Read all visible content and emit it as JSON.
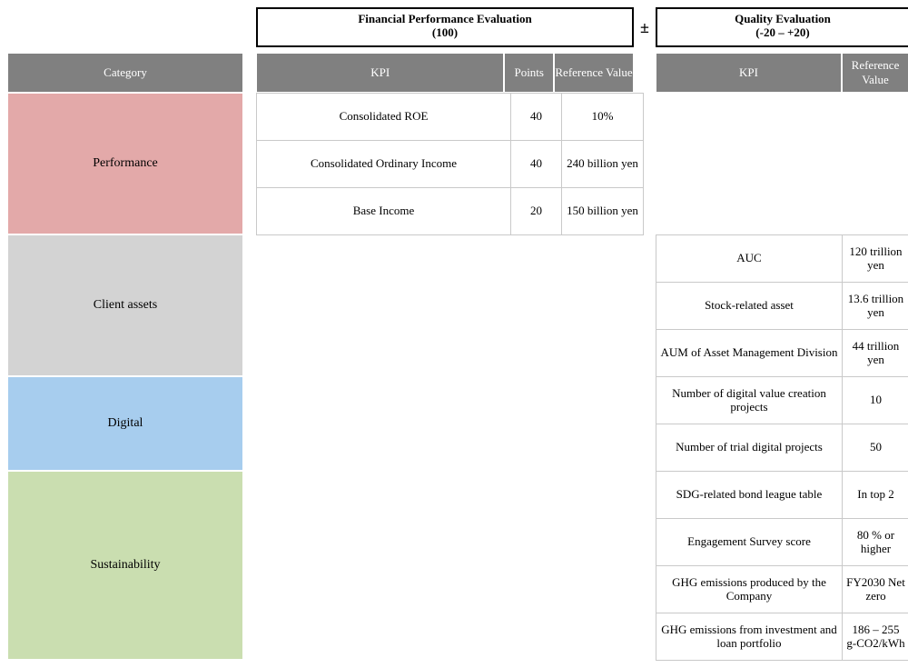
{
  "headers": {
    "category": "Category",
    "financial_title_l1": "Financial Performance Evaluation",
    "financial_title_l2": "(100)",
    "quality_title_l1": "Quality Evaluation",
    "quality_title_l2": "(-20 – +20)",
    "plusminus": "±",
    "kpi": "KPI",
    "points": "Points",
    "reference_value": "Reference Value"
  },
  "categories": {
    "performance": "Performance",
    "client_assets": "Client assets",
    "digital": "Digital",
    "sustainability": "Sustainability"
  },
  "colors": {
    "performance": "#e3a9a9",
    "client_assets": "#d3d3d3",
    "digital": "#a7cdee",
    "sustainability": "#cadeb0",
    "header_bg": "#808080",
    "header_fg": "#ffffff",
    "cell_border": "#c9c9c9"
  },
  "financial_rows": [
    {
      "kpi": "Consolidated ROE",
      "points": "40",
      "ref": "10%"
    },
    {
      "kpi": "Consolidated Ordinary Income",
      "points": "40",
      "ref": "240 billion yen"
    },
    {
      "kpi": "Base Income",
      "points": "20",
      "ref": "150 billion yen"
    }
  ],
  "quality_rows": [
    {
      "kpi": "AUC",
      "ref": "120 trillion yen"
    },
    {
      "kpi": "Stock-related asset",
      "ref": "13.6 trillion yen"
    },
    {
      "kpi": "AUM of Asset Management Division",
      "ref": "44 trillion yen"
    },
    {
      "kpi": "Number of digital value creation projects",
      "ref": "10"
    },
    {
      "kpi": "Number of trial digital projects",
      "ref": "50"
    },
    {
      "kpi": "SDG-related bond league table",
      "ref": "In top 2"
    },
    {
      "kpi": "Engagement Survey score",
      "ref": "80 % or higher"
    },
    {
      "kpi": "GHG emissions produced by the Company",
      "ref": "FY2030 Net zero"
    },
    {
      "kpi": "GHG emissions from investment and loan portfolio",
      "ref": "186 – 255 g-CO2/kWh"
    }
  ]
}
